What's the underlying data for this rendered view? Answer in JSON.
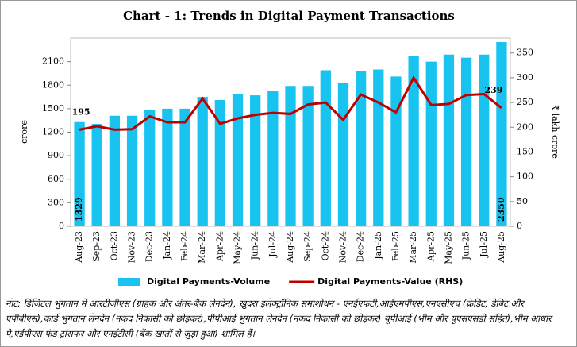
{
  "chart_data": {
    "type": "bar-line",
    "title": "Chart - 1: Trends in Digital Payment Transactions",
    "y_label": "crore",
    "y2_label": "₹ lakh crore",
    "categories": [
      "Aug-23",
      "Sep-23",
      "Oct-23",
      "Nov-23",
      "Dec-23",
      "Jan-24",
      "Feb-24",
      "Mar-24",
      "Apr-24",
      "May-24",
      "Jun-24",
      "Jul-24",
      "Aug-24",
      "Sep-24",
      "Oct-24",
      "Nov-24",
      "Dec-24",
      "Jan-25",
      "Feb-25",
      "Mar-25",
      "Apr-25",
      "May-25",
      "Jun-25",
      "Jul-25",
      "Aug-25"
    ],
    "series": [
      {
        "name": "Digital Payments-Volume",
        "type": "bar",
        "color": "#19c3f0",
        "values": [
          1329,
          1305,
          1410,
          1410,
          1480,
          1500,
          1500,
          1650,
          1610,
          1690,
          1670,
          1730,
          1790,
          1790,
          1990,
          1830,
          1980,
          2000,
          1910,
          2170,
          2100,
          2190,
          2150,
          2190,
          2350
        ]
      },
      {
        "name": "Digital Payments-Value (RHS)",
        "type": "line",
        "axis": "y2",
        "color": "#c00000",
        "values": [
          195,
          202,
          195,
          196,
          222,
          210,
          210,
          258,
          207,
          218,
          225,
          229,
          227,
          246,
          250,
          215,
          266,
          250,
          230,
          300,
          245,
          247,
          265,
          267,
          239
        ]
      }
    ],
    "labeled_points": [
      [
        0,
        0
      ],
      [
        0,
        24
      ],
      [
        1,
        0
      ],
      [
        1,
        24
      ]
    ],
    "ylim": [
      0,
      2400
    ],
    "yticks": [
      0,
      300,
      600,
      900,
      1200,
      1500,
      1800,
      2100
    ],
    "y2lim": [
      0,
      380
    ],
    "y2ticks": [
      0,
      50,
      100,
      150,
      200,
      250,
      300,
      350
    ]
  },
  "note": "नोट: डिजिटल भुगतान में आरटीजीएस (ग्राहक और अंतर-बैंक लेनदेन), खुदरा इलेक्ट्रॉनिक समाशोधन - एनईएफटी,आईएमपीएस,एनएसीएच (क्रेडिट, डेबिट और एपीबीएस),कार्ड भुगतान लेनदेन (नकद निकासी को छोड़कर),पीपीआई भुगतान लेनदेन (नकद निकासी को छोड़कर) यूपीआई (भीम और यूएसएसडी सहित),भीम आधार पे,एईपीएस फंड ट्रांसफर और एनईटीसी (बैंक खातों से जुड़ा हुआ) शामिल हैं।"
}
